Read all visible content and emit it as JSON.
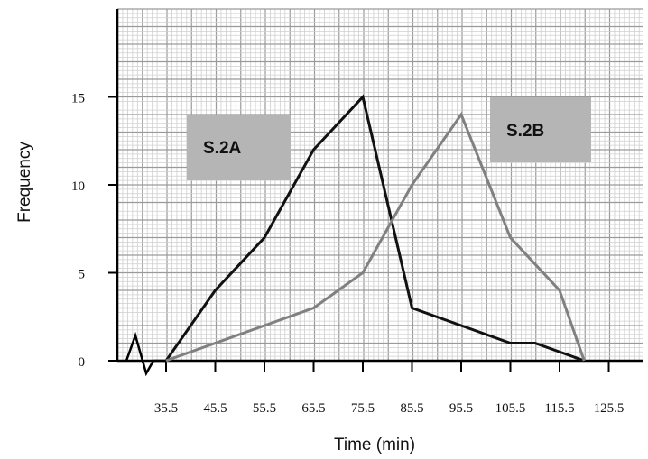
{
  "chart_data": {
    "type": "line",
    "xlabel": "Time (min)",
    "ylabel": "Frequency",
    "ylim": [
      0,
      20
    ],
    "grid": true,
    "y_ticks": [
      0,
      5,
      10,
      15
    ],
    "x_tick_labels": [
      "35.5",
      "45.5",
      "55.5",
      "65.5",
      "75.5",
      "85.5",
      "95.5",
      "105.5",
      "115.5",
      "125.5"
    ],
    "x_tick_values": [
      35.5,
      45.5,
      55.5,
      65.5,
      75.5,
      85.5,
      95.5,
      105.5,
      115.5,
      125.5
    ],
    "series": [
      {
        "name": "S.2A",
        "color": "#111111",
        "points": [
          [
            35.5,
            0
          ],
          [
            45.5,
            4
          ],
          [
            55.5,
            7
          ],
          [
            65.5,
            12
          ],
          [
            75.5,
            15
          ],
          [
            85.5,
            3
          ],
          [
            95.5,
            2
          ],
          [
            105.5,
            1
          ],
          [
            110.5,
            1
          ],
          [
            120.5,
            0
          ]
        ]
      },
      {
        "name": "S.2B",
        "color": "#808080",
        "points": [
          [
            35.5,
            0
          ],
          [
            55.5,
            2
          ],
          [
            65.5,
            3
          ],
          [
            75.5,
            5
          ],
          [
            85.5,
            10
          ],
          [
            95.5,
            14
          ],
          [
            105.5,
            7
          ],
          [
            115.5,
            4
          ],
          [
            120.5,
            0
          ]
        ]
      }
    ]
  }
}
